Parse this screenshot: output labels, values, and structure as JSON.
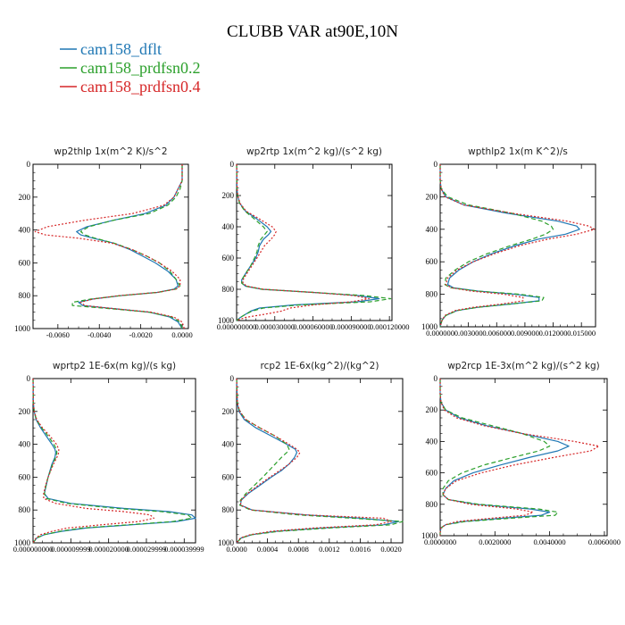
{
  "chart_data": {
    "type": "line",
    "title": "CLUBB VAR at90E,10N",
    "legend": [
      {
        "name": "cam158_dflt",
        "color": "#1f77b4",
        "dash": "solid"
      },
      {
        "name": "cam158_prdfsn0.2",
        "color": "#2ca02c",
        "dash": "dashed"
      },
      {
        "name": "cam158_prdfsn0.4",
        "color": "#d62728",
        "dash": "dotted"
      }
    ],
    "yticks": [
      "0",
      "200",
      "400",
      "600",
      "800",
      "1000"
    ],
    "ylim": [
      0,
      1000
    ],
    "panels": [
      {
        "title": "wp2thlp   1x(m^2 K)/s^2",
        "xlim": [
          -0.0072,
          0.0003
        ],
        "xticks": [
          -0.006,
          -0.004,
          -0.002,
          0.0
        ],
        "xticklabels": [
          "-0.0060",
          "-0.0040",
          "-0.0020",
          "0.0000"
        ],
        "y": [
          0,
          100,
          150,
          200,
          250,
          300,
          340,
          380,
          410,
          430,
          450,
          480,
          520,
          560,
          600,
          650,
          700,
          740,
          760,
          780,
          800,
          820,
          840,
          860,
          880,
          900,
          930,
          960,
          1000
        ],
        "series": [
          {
            "name": "cam158_dflt",
            "values": [
              0.0,
              0.0,
              -0.0002,
              -0.0004,
              -0.0008,
              -0.0018,
              -0.0033,
              -0.0046,
              -0.0051,
              -0.0049,
              -0.0043,
              -0.0033,
              -0.0025,
              -0.0019,
              -0.0013,
              -0.0007,
              -0.0003,
              -0.0002,
              -0.0004,
              -0.0012,
              -0.003,
              -0.0043,
              -0.005,
              -0.0048,
              -0.0032,
              -0.0016,
              -0.0006,
              -0.0002,
              0.0
            ]
          },
          {
            "name": "cam158_prdfsn0.2",
            "values": [
              0.0,
              0.0,
              -0.0001,
              -0.0003,
              -0.0007,
              -0.0016,
              -0.0033,
              -0.0045,
              -0.0049,
              -0.0047,
              -0.0042,
              -0.0033,
              -0.0024,
              -0.0017,
              -0.0011,
              -0.0006,
              -0.0003,
              -0.0001,
              -0.0003,
              -0.0012,
              -0.003,
              -0.0044,
              -0.0053,
              -0.0053,
              -0.0034,
              -0.0016,
              -0.0005,
              -0.0001,
              0.0
            ]
          },
          {
            "name": "cam158_prdfsn0.4",
            "values": [
              0.0,
              0.0,
              -0.0002,
              -0.0004,
              -0.0009,
              -0.0024,
              -0.0047,
              -0.0065,
              -0.0071,
              -0.0066,
              -0.005,
              -0.0034,
              -0.0024,
              -0.0017,
              -0.0011,
              -0.0005,
              -0.0001,
              -0.0001,
              -0.0003,
              -0.0012,
              -0.0031,
              -0.0043,
              -0.0049,
              -0.0047,
              -0.0032,
              -0.0015,
              -0.0004,
              0.0,
              0.0001
            ]
          }
        ]
      },
      {
        "title": "wp2rtp   1x(m^2 kg)/(s^2 kg)",
        "xlim": [
          0,
          0.000122
        ],
        "xticks": [
          0,
          3e-05,
          6e-05,
          9e-05,
          0.00012
        ],
        "xticklabels": [
          "0.000000000",
          "0.000030000",
          "0.000060000",
          "0.000090000",
          "0.000120000"
        ],
        "y": [
          0,
          150,
          200,
          250,
          300,
          350,
          400,
          430,
          450,
          480,
          520,
          560,
          600,
          650,
          700,
          740,
          760,
          780,
          800,
          820,
          840,
          860,
          880,
          900,
          920,
          940,
          960,
          980,
          1000
        ],
        "series": [
          {
            "name": "cam158_dflt",
            "values": [
              0,
              3e-07,
              8e-07,
              2.5e-06,
              7e-06,
              1.6e-05,
              2.4e-05,
              2.7e-05,
              2.5e-05,
              2.1e-05,
              1.8e-05,
              1.7e-05,
              1.5e-05,
              1.1e-05,
              7e-06,
              4e-06,
              4e-06,
              7e-06,
              2e-05,
              6e-05,
              9.5e-05,
              0.000112,
              9.5e-05,
              4.5e-05,
              1.8e-05,
              1.1e-05,
              7e-06,
              3e-06,
              0
            ]
          },
          {
            "name": "cam158_prdfsn0.2",
            "values": [
              0,
              3e-07,
              8e-07,
              2.3e-06,
              6.5e-06,
              1.4e-05,
              2.1e-05,
              2.4e-05,
              2.2e-05,
              1.9e-05,
              1.7e-05,
              1.6e-05,
              1.4e-05,
              1.1e-05,
              7e-06,
              4e-06,
              4e-06,
              7e-06,
              2e-05,
              6e-05,
              0.0001,
              0.000121,
              0.000105,
              5e-05,
              2.1e-05,
              1.2e-05,
              7e-06,
              3e-06,
              0
            ]
          },
          {
            "name": "cam158_prdfsn0.4",
            "values": [
              0,
              4e-07,
              9e-07,
              2.7e-06,
              7.5e-06,
              1.8e-05,
              2.8e-05,
              3.1e-05,
              3e-05,
              2.7e-05,
              2.2e-05,
              1.9e-05,
              1.6e-05,
              1.2e-05,
              8e-06,
              5e-06,
              5e-06,
              8e-06,
              2.1e-05,
              6e-05,
              9.2e-05,
              0.000104,
              9e-05,
              6e-05,
              4.2e-05,
              3.5e-05,
              2.2e-05,
              7e-06,
              0
            ]
          }
        ]
      },
      {
        "title": "wpthlp2   1x(m K^2)/s",
        "xlim": [
          0,
          0.0165
        ],
        "xticks": [
          0,
          0.003,
          0.006,
          0.009,
          0.012,
          0.015
        ],
        "xticklabels": [
          "0.000000",
          "0.003000",
          "0.006000",
          "0.009000",
          "0.012000",
          "0.015000"
        ],
        "y": [
          0,
          100,
          150,
          200,
          250,
          300,
          350,
          380,
          400,
          430,
          460,
          500,
          550,
          600,
          650,
          700,
          740,
          760,
          780,
          800,
          820,
          840,
          860,
          880,
          900,
          930,
          960,
          1000
        ],
        "series": [
          {
            "name": "cam158_dflt",
            "values": [
              0.0,
              0.0,
              0.0001,
              0.0006,
              0.0025,
              0.007,
              0.0125,
              0.0145,
              0.0148,
              0.0133,
              0.0105,
              0.008,
              0.0055,
              0.0035,
              0.002,
              0.001,
              0.0008,
              0.0014,
              0.004,
              0.008,
              0.0105,
              0.0105,
              0.0075,
              0.004,
              0.0018,
              0.0006,
              0.0002,
              0.0
            ]
          },
          {
            "name": "cam158_prdfsn0.2",
            "values": [
              0.0,
              0.0,
              0.0001,
              0.0008,
              0.003,
              0.0075,
              0.0108,
              0.0118,
              0.012,
              0.0112,
              0.0098,
              0.0075,
              0.005,
              0.003,
              0.0016,
              0.0006,
              0.0005,
              0.0011,
              0.004,
              0.0085,
              0.011,
              0.0108,
              0.0075,
              0.004,
              0.0018,
              0.0006,
              0.0002,
              0.0
            ]
          },
          {
            "name": "cam158_prdfsn0.4",
            "values": [
              0.0,
              0.0,
              0.0001,
              0.0005,
              0.0025,
              0.0075,
              0.0135,
              0.0158,
              0.0164,
              0.0145,
              0.0115,
              0.0085,
              0.0058,
              0.0035,
              0.0018,
              0.0008,
              0.0006,
              0.0012,
              0.0033,
              0.0068,
              0.0088,
              0.0088,
              0.0065,
              0.0035,
              0.0016,
              0.0005,
              0.0002,
              0.0
            ]
          }
        ]
      },
      {
        "title": "wprtp2   1E-6x(m kg)/(s kg)",
        "xlim": [
          0,
          4.3e-05
        ],
        "xticks": [
          0,
          1e-05,
          2e-05,
          3e-05,
          4e-05
        ],
        "xticklabels": [
          "0.000000000",
          "0.000009999",
          "0.000020000",
          "0.000029999",
          "0.000039999"
        ],
        "y": [
          0,
          150,
          200,
          250,
          300,
          350,
          400,
          430,
          450,
          480,
          520,
          560,
          600,
          650,
          700,
          730,
          760,
          790,
          810,
          830,
          850,
          870,
          890,
          910,
          930,
          950,
          970,
          1000
        ],
        "series": [
          {
            "name": "cam158_dflt",
            "values": [
              0,
              1e-07,
              3e-07,
              8e-07,
              2e-06,
              3.5e-06,
              5e-06,
              5.8e-06,
              6e-06,
              5.8e-06,
              5e-06,
              4.5e-06,
              4e-06,
              3.5e-06,
              3e-06,
              4e-06,
              1e-05,
              2.4e-05,
              3.6e-05,
              4.2e-05,
              4.3e-05,
              3.8e-05,
              2.6e-05,
              1.4e-05,
              7.5e-06,
              3e-06,
              1e-06,
              0
            ]
          },
          {
            "name": "cam158_prdfsn0.2",
            "values": [
              0,
              1e-07,
              3e-07,
              9e-07,
              2.3e-06,
              4e-06,
              5.5e-06,
              6.2e-06,
              6.3e-06,
              6e-06,
              5.2e-06,
              4.6e-06,
              4e-06,
              3.4e-06,
              3e-06,
              3.5e-06,
              9e-06,
              2.2e-05,
              3.4e-05,
              4.1e-05,
              4.2e-05,
              3.7e-05,
              2.5e-05,
              1.3e-05,
              7e-06,
              3e-06,
              1e-06,
              0
            ]
          },
          {
            "name": "cam158_prdfsn0.4",
            "values": [
              0,
              1e-07,
              3e-07,
              1e-06,
              2.5e-06,
              4.5e-06,
              6.2e-06,
              6.8e-06,
              6.8e-06,
              6.3e-06,
              5.4e-06,
              4.7e-06,
              4e-06,
              3.3e-06,
              2.8e-06,
              2.8e-06,
              6e-06,
              1.4e-05,
              2.4e-05,
              3.1e-05,
              3.2e-05,
              2.8e-05,
              1.8e-05,
              9e-06,
              5e-06,
              2e-06,
              8e-07,
              0
            ]
          }
        ]
      },
      {
        "title": "rcp2   1E-6x(kg^2)/(kg^2)",
        "xlim": [
          0,
          0.00215
        ],
        "xticks": [
          0,
          0.0004,
          0.0008,
          0.0012,
          0.0016,
          0.002
        ],
        "xticklabels": [
          "0.0000",
          "0.0004",
          "0.0008",
          "0.0012",
          "0.0016",
          "0.0020"
        ],
        "y": [
          0,
          150,
          200,
          250,
          300,
          350,
          400,
          430,
          450,
          480,
          520,
          560,
          600,
          650,
          700,
          740,
          770,
          800,
          830,
          850,
          870,
          890,
          910,
          930,
          950,
          970,
          1000
        ],
        "series": [
          {
            "name": "cam158_dflt",
            "values": [
              0,
              1e-05,
              3e-05,
              0.0001,
              0.00025,
              0.00045,
              0.00065,
              0.00076,
              0.00078,
              0.00075,
              0.00068,
              0.00058,
              0.00045,
              0.0003,
              0.00015,
              6e-05,
              5e-05,
              0.0002,
              0.0009,
              0.0016,
              0.0021,
              0.0019,
              0.0011,
              0.0005,
              0.0002,
              6e-05,
              0
            ]
          },
          {
            "name": "cam158_prdfsn0.2",
            "values": [
              0,
              1e-05,
              4e-05,
              0.00012,
              0.0003,
              0.0005,
              0.00065,
              0.00068,
              0.00065,
              0.00058,
              0.0005,
              0.00042,
              0.00034,
              0.00023,
              0.00012,
              5e-05,
              4e-05,
              0.00018,
              0.0008,
              0.0015,
              0.00215,
              0.002,
              0.0012,
              0.00055,
              0.0002,
              6e-05,
              0
            ]
          },
          {
            "name": "cam158_prdfsn0.4",
            "values": [
              0,
              1e-05,
              4e-05,
              0.00012,
              0.0003,
              0.0005,
              0.00068,
              0.00078,
              0.00082,
              0.00078,
              0.00068,
              0.00056,
              0.00043,
              0.00028,
              0.00014,
              6e-05,
              5e-05,
              0.0002,
              0.0009,
              0.0019,
              0.002,
              0.0018,
              0.001,
              0.00045,
              0.00018,
              5e-05,
              0
            ]
          }
        ]
      },
      {
        "title": "wp2rcp   1E-3x(m^2 kg)/(s^2 kg)",
        "xlim": [
          0,
          0.0061
        ],
        "xticks": [
          0,
          0.002,
          0.004,
          0.006
        ],
        "xticklabels": [
          "0.0000000",
          "0.0020000",
          "0.0040000",
          "0.0060000"
        ],
        "y": [
          0,
          100,
          150,
          200,
          250,
          300,
          350,
          400,
          430,
          460,
          500,
          550,
          600,
          650,
          700,
          740,
          770,
          800,
          830,
          850,
          870,
          890,
          910,
          930,
          950,
          980,
          1000
        ],
        "series": [
          {
            "name": "cam158_dflt",
            "values": [
              0,
              0,
              3e-05,
              0.0002,
              0.0007,
              0.0017,
              0.003,
              0.0043,
              0.0047,
              0.0043,
              0.0033,
              0.0022,
              0.0012,
              0.0005,
              0.0002,
              0.0001,
              0.0003,
              0.0013,
              0.0033,
              0.004,
              0.0037,
              0.0022,
              0.0008,
              0.0002,
              3e-05,
              0,
              0
            ]
          },
          {
            "name": "cam158_prdfsn0.2",
            "values": [
              0,
              0,
              3e-05,
              0.0002,
              0.0008,
              0.0019,
              0.003,
              0.0038,
              0.004,
              0.0036,
              0.0027,
              0.0016,
              0.0008,
              0.0003,
              0.0001,
              0.0001,
              0.0003,
              0.0014,
              0.0036,
              0.0043,
              0.0042,
              0.0025,
              0.0009,
              0.0002,
              3e-05,
              0,
              0
            ]
          },
          {
            "name": "cam158_prdfsn0.4",
            "values": [
              0,
              0,
              3e-05,
              0.00015,
              0.0006,
              0.0016,
              0.003,
              0.0049,
              0.0058,
              0.0055,
              0.0042,
              0.0027,
              0.0015,
              0.0006,
              0.0002,
              0.0001,
              0.0003,
              0.0011,
              0.0028,
              0.0034,
              0.0031,
              0.0018,
              0.0006,
              0.0002,
              3e-05,
              0,
              0
            ]
          }
        ]
      }
    ]
  }
}
